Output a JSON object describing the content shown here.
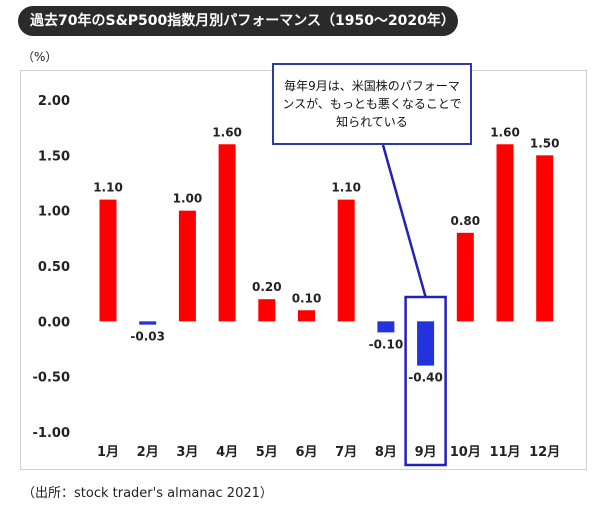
{
  "title": "過去70年のS&P500指数月別パフォーマンス（1950～2020年）",
  "unit_label": "（%）",
  "annotation": "毎年9月は、米国株のパフォーマンスが、もっとも悪くなることで知られている",
  "source": "（出所：stock trader's almanac 2021）",
  "colors": {
    "positive": "#ff0000",
    "negative": "#2233dd",
    "highlight": "#2222bb",
    "callout_border": "#2a3aa8"
  },
  "chart_data": {
    "type": "bar",
    "categories": [
      "1月",
      "2月",
      "3月",
      "4月",
      "5月",
      "6月",
      "7月",
      "8月",
      "9月",
      "10月",
      "11月",
      "12月"
    ],
    "values": [
      1.1,
      -0.03,
      1.0,
      1.6,
      0.2,
      0.1,
      1.1,
      -0.1,
      -0.4,
      0.8,
      1.6,
      1.5
    ],
    "value_labels": [
      "1.10",
      "-0.03",
      "1.00",
      "1.60",
      "0.20",
      "0.10",
      "1.10",
      "-0.10",
      "-0.40",
      "0.80",
      "1.60",
      "1.50"
    ],
    "yticks": [
      "2.00",
      "1.50",
      "1.00",
      "0.50",
      "0.00",
      "-0.50",
      "-1.00"
    ],
    "ylim": [
      -1.0,
      2.0
    ],
    "highlighted_category": "9月",
    "grid": false,
    "legend": "none"
  }
}
